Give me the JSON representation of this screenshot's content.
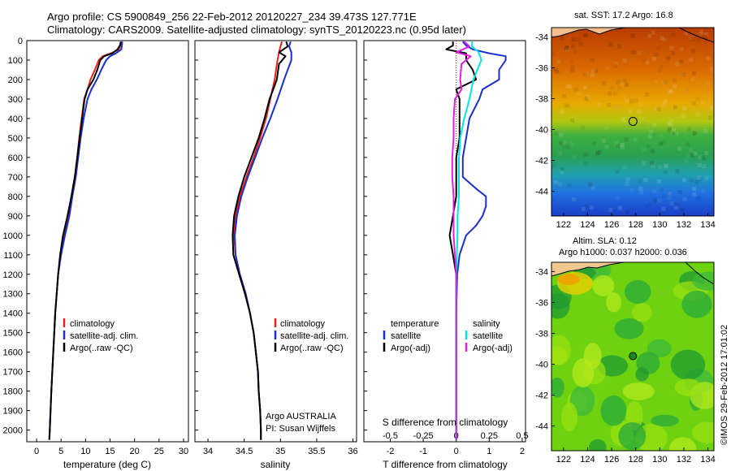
{
  "header": {
    "title_line1": "Argo profile: CS 5900849_256 22-Feb-2012 20120227_234 39.473S 127.771E",
    "title_line2": "Climatology: CARS2009. Satellite-adjusted climatology: synTS_20120223.nc (0.95d later)"
  },
  "colors": {
    "climatology": "#e8201a",
    "satellite": "#1a2fd0",
    "argo": "#000000",
    "sal_satellite": "#00e5e5",
    "sal_argo": "#e020e0"
  },
  "maps": {
    "sst_label": "sat. SST: 17.2  Argo: 16.8",
    "sla_label_line1": "Altim. SLA: 0.12",
    "sla_label_line2": "Argo h1000: 0.037 h2000: 0.036",
    "lat_ticks": [
      "-34",
      "-36",
      "-38",
      "-40",
      "-42",
      "-44"
    ],
    "lon_ticks": [
      "122",
      "124",
      "126",
      "128",
      "130",
      "132",
      "134"
    ],
    "argo_lon": 127.771,
    "argo_lat": -39.473
  },
  "credit": "©IMOS 29-Feb-2012 17:01:02",
  "chart_data": [
    {
      "type": "line",
      "panel": "temperature",
      "ylabel_ticks": [
        "0",
        "100",
        "200",
        "300",
        "400",
        "500",
        "600",
        "700",
        "800",
        "900",
        "1000",
        "1100",
        "1200",
        "1300",
        "1400",
        "1500",
        "1600",
        "1700",
        "1800",
        "1900",
        "2000"
      ],
      "xlabel": "temperature (deg C)",
      "xticks": [
        "0",
        "5",
        "10",
        "15",
        "20",
        "25",
        "30"
      ],
      "xlim": [
        -2,
        31
      ],
      "ylim": [
        2060,
        0
      ],
      "legend": [
        "climatology",
        "satellite-adj. clim.",
        "Argo(..raw -QC)"
      ],
      "legend_placement": "lower-middle",
      "series": [
        {
          "name": "climatology",
          "color_key": "climatology",
          "points": [
            [
              17.3,
              5
            ],
            [
              17.1,
              25
            ],
            [
              16.8,
              45
            ],
            [
              15.2,
              65
            ],
            [
              13.5,
              80
            ],
            [
              12.7,
              100
            ],
            [
              11.9,
              150
            ],
            [
              11.0,
              200
            ],
            [
              10.4,
              250
            ],
            [
              9.7,
              300
            ],
            [
              9.2,
              400
            ],
            [
              8.7,
              500
            ],
            [
              8.3,
              600
            ],
            [
              7.8,
              700
            ],
            [
              7.1,
              800
            ],
            [
              6.4,
              900
            ],
            [
              5.6,
              1000
            ],
            [
              4.9,
              1100
            ],
            [
              4.4,
              1200
            ],
            [
              3.8,
              1400
            ],
            [
              3.4,
              1600
            ],
            [
              3.0,
              1800
            ],
            [
              2.7,
              2000
            ],
            [
              2.6,
              2050
            ]
          ]
        },
        {
          "name": "satellite-adj. clim.",
          "color_key": "satellite",
          "points": [
            [
              17.5,
              5
            ],
            [
              17.4,
              25
            ],
            [
              17.3,
              45
            ],
            [
              16.2,
              65
            ],
            [
              15.0,
              80
            ],
            [
              14.2,
              100
            ],
            [
              13.2,
              150
            ],
            [
              12.3,
              200
            ],
            [
              11.2,
              250
            ],
            [
              10.4,
              300
            ],
            [
              9.6,
              400
            ],
            [
              9.0,
              500
            ],
            [
              8.5,
              600
            ],
            [
              8.0,
              700
            ],
            [
              7.3,
              800
            ],
            [
              6.7,
              900
            ],
            [
              5.8,
              1000
            ],
            [
              5.0,
              1100
            ],
            [
              4.4,
              1200
            ],
            [
              3.8,
              1400
            ],
            [
              3.4,
              1600
            ],
            [
              3.0,
              1800
            ],
            [
              2.7,
              2000
            ],
            [
              2.6,
              2050
            ]
          ]
        },
        {
          "name": "Argo(..raw -QC)",
          "color_key": "argo",
          "points": [
            [
              17.2,
              5
            ],
            [
              17.0,
              25
            ],
            [
              16.5,
              45
            ],
            [
              15.5,
              65
            ],
            [
              13.8,
              80
            ],
            [
              13.0,
              100
            ],
            [
              12.4,
              150
            ],
            [
              11.6,
              200
            ],
            [
              10.4,
              250
            ],
            [
              9.8,
              300
            ],
            [
              9.3,
              400
            ],
            [
              8.8,
              500
            ],
            [
              8.3,
              600
            ],
            [
              7.8,
              700
            ],
            [
              7.1,
              800
            ],
            [
              6.3,
              900
            ],
            [
              5.4,
              1000
            ],
            [
              4.8,
              1100
            ],
            [
              4.4,
              1200
            ],
            [
              3.8,
              1400
            ],
            [
              3.4,
              1600
            ],
            [
              3.0,
              1800
            ],
            [
              2.7,
              2000
            ],
            [
              2.6,
              2050
            ]
          ]
        }
      ]
    },
    {
      "type": "line",
      "panel": "salinity",
      "xlabel": "salinity",
      "xticks": [
        "34",
        "34.5",
        "35",
        "35.5",
        "36"
      ],
      "xlim": [
        33.82,
        36.05
      ],
      "ylim": [
        2060,
        0
      ],
      "legend": [
        "climatology",
        "satellite-adj. clim.",
        "Argo(..raw -QC)"
      ],
      "legend_placement": "lower-right",
      "annotation_line1": "Argo AUSTRALIA",
      "annotation_line2": "PI: Susan Wijffels",
      "series": [
        {
          "name": "climatology",
          "color_key": "climatology",
          "points": [
            [
              35.02,
              5
            ],
            [
              35.0,
              30
            ],
            [
              34.98,
              60
            ],
            [
              34.96,
              100
            ],
            [
              34.94,
              150
            ],
            [
              34.92,
              200
            ],
            [
              34.86,
              300
            ],
            [
              34.8,
              400
            ],
            [
              34.72,
              500
            ],
            [
              34.63,
              600
            ],
            [
              34.53,
              700
            ],
            [
              34.44,
              800
            ],
            [
              34.38,
              900
            ],
            [
              34.36,
              1000
            ],
            [
              34.38,
              1100
            ],
            [
              34.44,
              1200
            ],
            [
              34.52,
              1300
            ],
            [
              34.58,
              1400
            ],
            [
              34.63,
              1500
            ],
            [
              34.66,
              1600
            ],
            [
              34.69,
              1700
            ],
            [
              34.7,
              1800
            ],
            [
              34.72,
              1900
            ],
            [
              34.73,
              2000
            ],
            [
              34.73,
              2050
            ]
          ]
        },
        {
          "name": "satellite-adj. clim.",
          "color_key": "satellite",
          "points": [
            [
              35.14,
              5
            ],
            [
              35.12,
              30
            ],
            [
              35.15,
              60
            ],
            [
              35.15,
              100
            ],
            [
              35.1,
              150
            ],
            [
              35.05,
              200
            ],
            [
              34.96,
              300
            ],
            [
              34.86,
              400
            ],
            [
              34.75,
              500
            ],
            [
              34.65,
              600
            ],
            [
              34.55,
              700
            ],
            [
              34.46,
              800
            ],
            [
              34.4,
              900
            ],
            [
              34.37,
              1000
            ],
            [
              34.38,
              1100
            ],
            [
              34.44,
              1200
            ],
            [
              34.52,
              1300
            ],
            [
              34.58,
              1400
            ],
            [
              34.63,
              1500
            ],
            [
              34.66,
              1600
            ],
            [
              34.69,
              1700
            ],
            [
              34.7,
              1800
            ],
            [
              34.72,
              1900
            ],
            [
              34.73,
              2000
            ],
            [
              34.73,
              2050
            ]
          ]
        },
        {
          "name": "Argo(..raw -QC)",
          "color_key": "argo",
          "points": [
            [
              35.08,
              5
            ],
            [
              35.1,
              30
            ],
            [
              34.98,
              60
            ],
            [
              35.07,
              80
            ],
            [
              34.98,
              120
            ],
            [
              34.95,
              200
            ],
            [
              34.9,
              250
            ],
            [
              34.85,
              300
            ],
            [
              34.78,
              400
            ],
            [
              34.7,
              500
            ],
            [
              34.6,
              600
            ],
            [
              34.5,
              700
            ],
            [
              34.42,
              800
            ],
            [
              34.36,
              900
            ],
            [
              34.34,
              1000
            ],
            [
              34.35,
              1100
            ],
            [
              34.43,
              1200
            ],
            [
              34.51,
              1300
            ],
            [
              34.58,
              1400
            ],
            [
              34.63,
              1500
            ],
            [
              34.66,
              1600
            ],
            [
              34.69,
              1700
            ],
            [
              34.7,
              1800
            ],
            [
              34.72,
              1900
            ],
            [
              34.73,
              2000
            ],
            [
              34.73,
              2050
            ]
          ]
        }
      ]
    },
    {
      "type": "line",
      "panel": "differences",
      "xlabel": "T difference from climatology",
      "top_label": "S difference from climatology",
      "xticks": [
        "-2",
        "-1",
        "0",
        "1",
        "2"
      ],
      "top_ticks": [
        "-0.5",
        "-0.25",
        "0",
        "0.25",
        "0.5"
      ],
      "xlim": [
        -2.8,
        2.1
      ],
      "ylim": [
        2060,
        0
      ],
      "legend_temperature_title": "temperature",
      "legend_salinity_title": "salinity",
      "legend_temperature": [
        "satellite",
        "Argo(-adj)"
      ],
      "legend_salinity": [
        "satellite",
        "Argo(-adj)"
      ],
      "series": [
        {
          "name": "temperature satellite",
          "color_key": "satellite",
          "points": [
            [
              0.2,
              5
            ],
            [
              0.3,
              25
            ],
            [
              0.5,
              45
            ],
            [
              1.0,
              65
            ],
            [
              1.5,
              80
            ],
            [
              1.5,
              100
            ],
            [
              1.3,
              150
            ],
            [
              1.3,
              200
            ],
            [
              0.8,
              250
            ],
            [
              0.7,
              300
            ],
            [
              0.4,
              400
            ],
            [
              0.3,
              500
            ],
            [
              0.2,
              600
            ],
            [
              0.2,
              700
            ],
            [
              0.6,
              760
            ],
            [
              0.9,
              800
            ],
            [
              0.9,
              850
            ],
            [
              0.8,
              900
            ],
            [
              0.6,
              950
            ],
            [
              0.3,
              1000
            ],
            [
              0.1,
              1100
            ],
            [
              0.03,
              1200
            ],
            [
              0.0,
              1400
            ],
            [
              0.0,
              2050
            ]
          ]
        },
        {
          "name": "temperature Argo(-adj)",
          "color_key": "argo",
          "points": [
            [
              -0.1,
              5
            ],
            [
              -0.1,
              25
            ],
            [
              -0.3,
              45
            ],
            [
              0.3,
              65
            ],
            [
              0.3,
              80
            ],
            [
              0.3,
              100
            ],
            [
              0.5,
              150
            ],
            [
              0.6,
              200
            ],
            [
              0.0,
              250
            ],
            [
              0.1,
              300
            ],
            [
              0.1,
              400
            ],
            [
              0.1,
              500
            ],
            [
              0.0,
              600
            ],
            [
              0.0,
              700
            ],
            [
              0.0,
              800
            ],
            [
              -0.1,
              900
            ],
            [
              -0.2,
              1000
            ],
            [
              -0.1,
              1100
            ],
            [
              0.0,
              1200
            ],
            [
              0.0,
              1400
            ],
            [
              0.0,
              2050
            ]
          ]
        },
        {
          "name": "salinity satellite",
          "color_key": "sal_satellite",
          "points": [
            [
              0.12,
              5
            ],
            [
              0.12,
              30
            ],
            [
              0.17,
              60
            ],
            [
              0.19,
              100
            ],
            [
              0.16,
              150
            ],
            [
              0.13,
              200
            ],
            [
              0.1,
              300
            ],
            [
              0.06,
              400
            ],
            [
              0.03,
              500
            ],
            [
              0.02,
              600
            ],
            [
              0.02,
              700
            ],
            [
              0.02,
              800
            ],
            [
              0.01,
              900
            ],
            [
              0.01,
              1000
            ],
            [
              0.0,
              1200
            ],
            [
              0.0,
              2050
            ]
          ]
        },
        {
          "name": "salinity Argo(-adj)",
          "color_key": "sal_argo",
          "points": [
            [
              0.06,
              5
            ],
            [
              0.1,
              30
            ],
            [
              0.0,
              60
            ],
            [
              0.11,
              80
            ],
            [
              0.04,
              120
            ],
            [
              0.03,
              200
            ],
            [
              0.04,
              250
            ],
            [
              -0.01,
              300
            ],
            [
              -0.02,
              400
            ],
            [
              -0.02,
              500
            ],
            [
              -0.03,
              600
            ],
            [
              -0.03,
              700
            ],
            [
              -0.02,
              800
            ],
            [
              -0.02,
              900
            ],
            [
              -0.02,
              1000
            ],
            [
              -0.01,
              1100
            ],
            [
              0.0,
              1200
            ],
            [
              0.0,
              2050
            ]
          ]
        }
      ]
    }
  ]
}
